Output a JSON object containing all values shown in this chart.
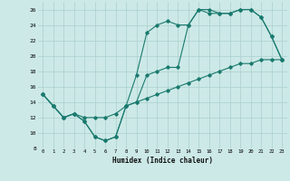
{
  "xlabel": "Humidex (Indice chaleur)",
  "xlim": [
    -0.5,
    23.5
  ],
  "ylim": [
    8,
    27
  ],
  "yticks": [
    8,
    10,
    12,
    14,
    16,
    18,
    20,
    22,
    24,
    26
  ],
  "xticks": [
    0,
    1,
    2,
    3,
    4,
    5,
    6,
    7,
    8,
    9,
    10,
    11,
    12,
    13,
    14,
    15,
    16,
    17,
    18,
    19,
    20,
    21,
    22,
    23
  ],
  "bg_color": "#cce9e7",
  "grid_color": "#aacfcd",
  "line_color": "#1a7a6e",
  "line1_x": [
    0,
    1,
    2,
    3,
    4,
    5,
    6,
    7,
    8,
    9,
    10,
    11,
    12,
    13,
    14,
    15,
    16,
    17,
    18,
    19,
    20,
    21,
    22,
    23
  ],
  "line1_y": [
    15,
    13.5,
    12,
    12.5,
    11.5,
    9.5,
    9,
    9.5,
    13.5,
    17.5,
    23,
    24,
    24.5,
    24,
    24,
    26,
    25.5,
    25.5,
    25.5,
    26,
    26,
    25,
    22.5,
    19.5
  ],
  "line2_x": [
    0,
    1,
    2,
    3,
    4,
    5,
    6,
    7,
    8,
    9,
    10,
    11,
    12,
    13,
    14,
    15,
    16,
    17,
    18,
    19,
    20,
    21,
    22,
    23
  ],
  "line2_y": [
    15,
    13.5,
    12,
    12.5,
    11.5,
    9.5,
    9,
    9.5,
    13.5,
    14,
    17.5,
    18,
    18.5,
    18.5,
    24,
    26,
    26,
    25.5,
    25.5,
    26,
    26,
    25,
    22.5,
    19.5
  ],
  "line3_x": [
    0,
    1,
    2,
    3,
    4,
    5,
    6,
    7,
    8,
    9,
    10,
    11,
    12,
    13,
    14,
    15,
    16,
    17,
    18,
    19,
    20,
    21,
    22,
    23
  ],
  "line3_y": [
    15,
    13.5,
    12,
    12.5,
    12,
    12,
    12,
    12.5,
    13.5,
    14,
    14.5,
    15,
    15.5,
    16,
    16.5,
    17,
    17.5,
    18,
    18.5,
    19,
    19,
    19.5,
    19.5,
    19.5
  ]
}
